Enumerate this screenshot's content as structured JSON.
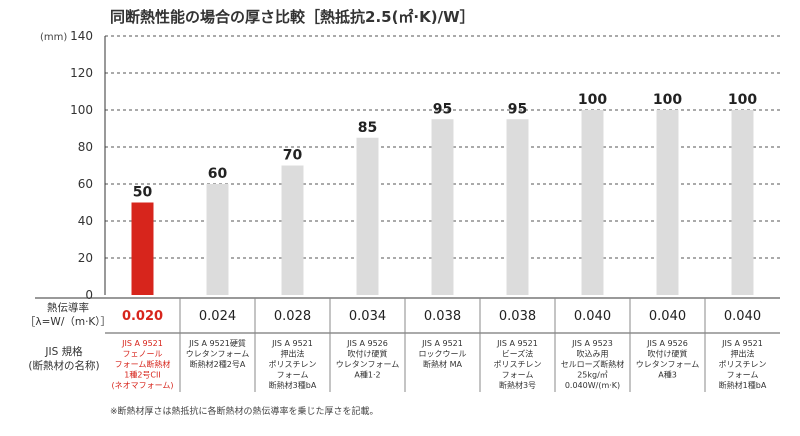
{
  "chart_data": {
    "type": "bar",
    "title": "同断熱性能の場合の厚さ比較［熱抵抗2.5(㎡·K)/W］",
    "ylabel": "(mm)",
    "ylim": [
      0,
      140
    ],
    "yticks": [
      "0",
      "20",
      "40",
      "60",
      "80",
      "100",
      "120",
      "140"
    ],
    "grid": true,
    "highlight_color": "#d7251c",
    "bar_color": "#dcdcdc",
    "categories": [
      {
        "value": 50,
        "label": "50",
        "lambda": "0.020",
        "highlight": true,
        "jis": [
          "JIS A 9521",
          "フェノール",
          "フォーム断熱材",
          "1種2号CII",
          "(ネオマフォーム)"
        ]
      },
      {
        "value": 60,
        "label": "60",
        "lambda": "0.024",
        "highlight": false,
        "jis": [
          "JIS A 9521硬質",
          "ウレタンフォーム",
          "断熱材2種2号A"
        ]
      },
      {
        "value": 70,
        "label": "70",
        "lambda": "0.028",
        "highlight": false,
        "jis": [
          "JIS A 9521",
          "押出法",
          "ポリスチレン",
          "フォーム",
          "断熱材3種bA"
        ]
      },
      {
        "value": 85,
        "label": "85",
        "lambda": "0.034",
        "highlight": false,
        "jis": [
          "JIS A 9526",
          "吹付け硬質",
          "ウレタンフォーム",
          "A種1·2"
        ]
      },
      {
        "value": 95,
        "label": "95",
        "lambda": "0.038",
        "highlight": false,
        "jis": [
          "JIS A 9521",
          "ロックウール",
          "断熱材 MA"
        ]
      },
      {
        "value": 95,
        "label": "95",
        "lambda": "0.038",
        "highlight": false,
        "jis": [
          "JIS A 9521",
          "ビーズ法",
          "ポリスチレン",
          "フォーム",
          "断熱材3号"
        ]
      },
      {
        "value": 100,
        "label": "100",
        "lambda": "0.040",
        "highlight": false,
        "jis": [
          "JIS A 9523",
          "吹込み用",
          "セルローズ断熱材",
          "25kg/㎥",
          "0.040W/(m·K)"
        ]
      },
      {
        "value": 100,
        "label": "100",
        "lambda": "0.040",
        "highlight": false,
        "jis": [
          "JIS A 9526",
          "吹付け硬質",
          "ウレタンフォーム",
          "A種3"
        ]
      },
      {
        "value": 100,
        "label": "100",
        "lambda": "0.040",
        "highlight": false,
        "jis": [
          "JIS A 9521",
          "押出法",
          "ポリスチレン",
          "フォーム",
          "断熱材1種bA"
        ]
      }
    ],
    "lambda_row_header": [
      "熱伝導率",
      "［λ=W/（m·K）］"
    ],
    "jis_row_header": [
      "JIS 規格",
      "(断熱材の名称)"
    ],
    "note": "※断熱材厚さは熱抵抗に各断熱材の熱伝導率を乗じた厚さを記載。"
  }
}
